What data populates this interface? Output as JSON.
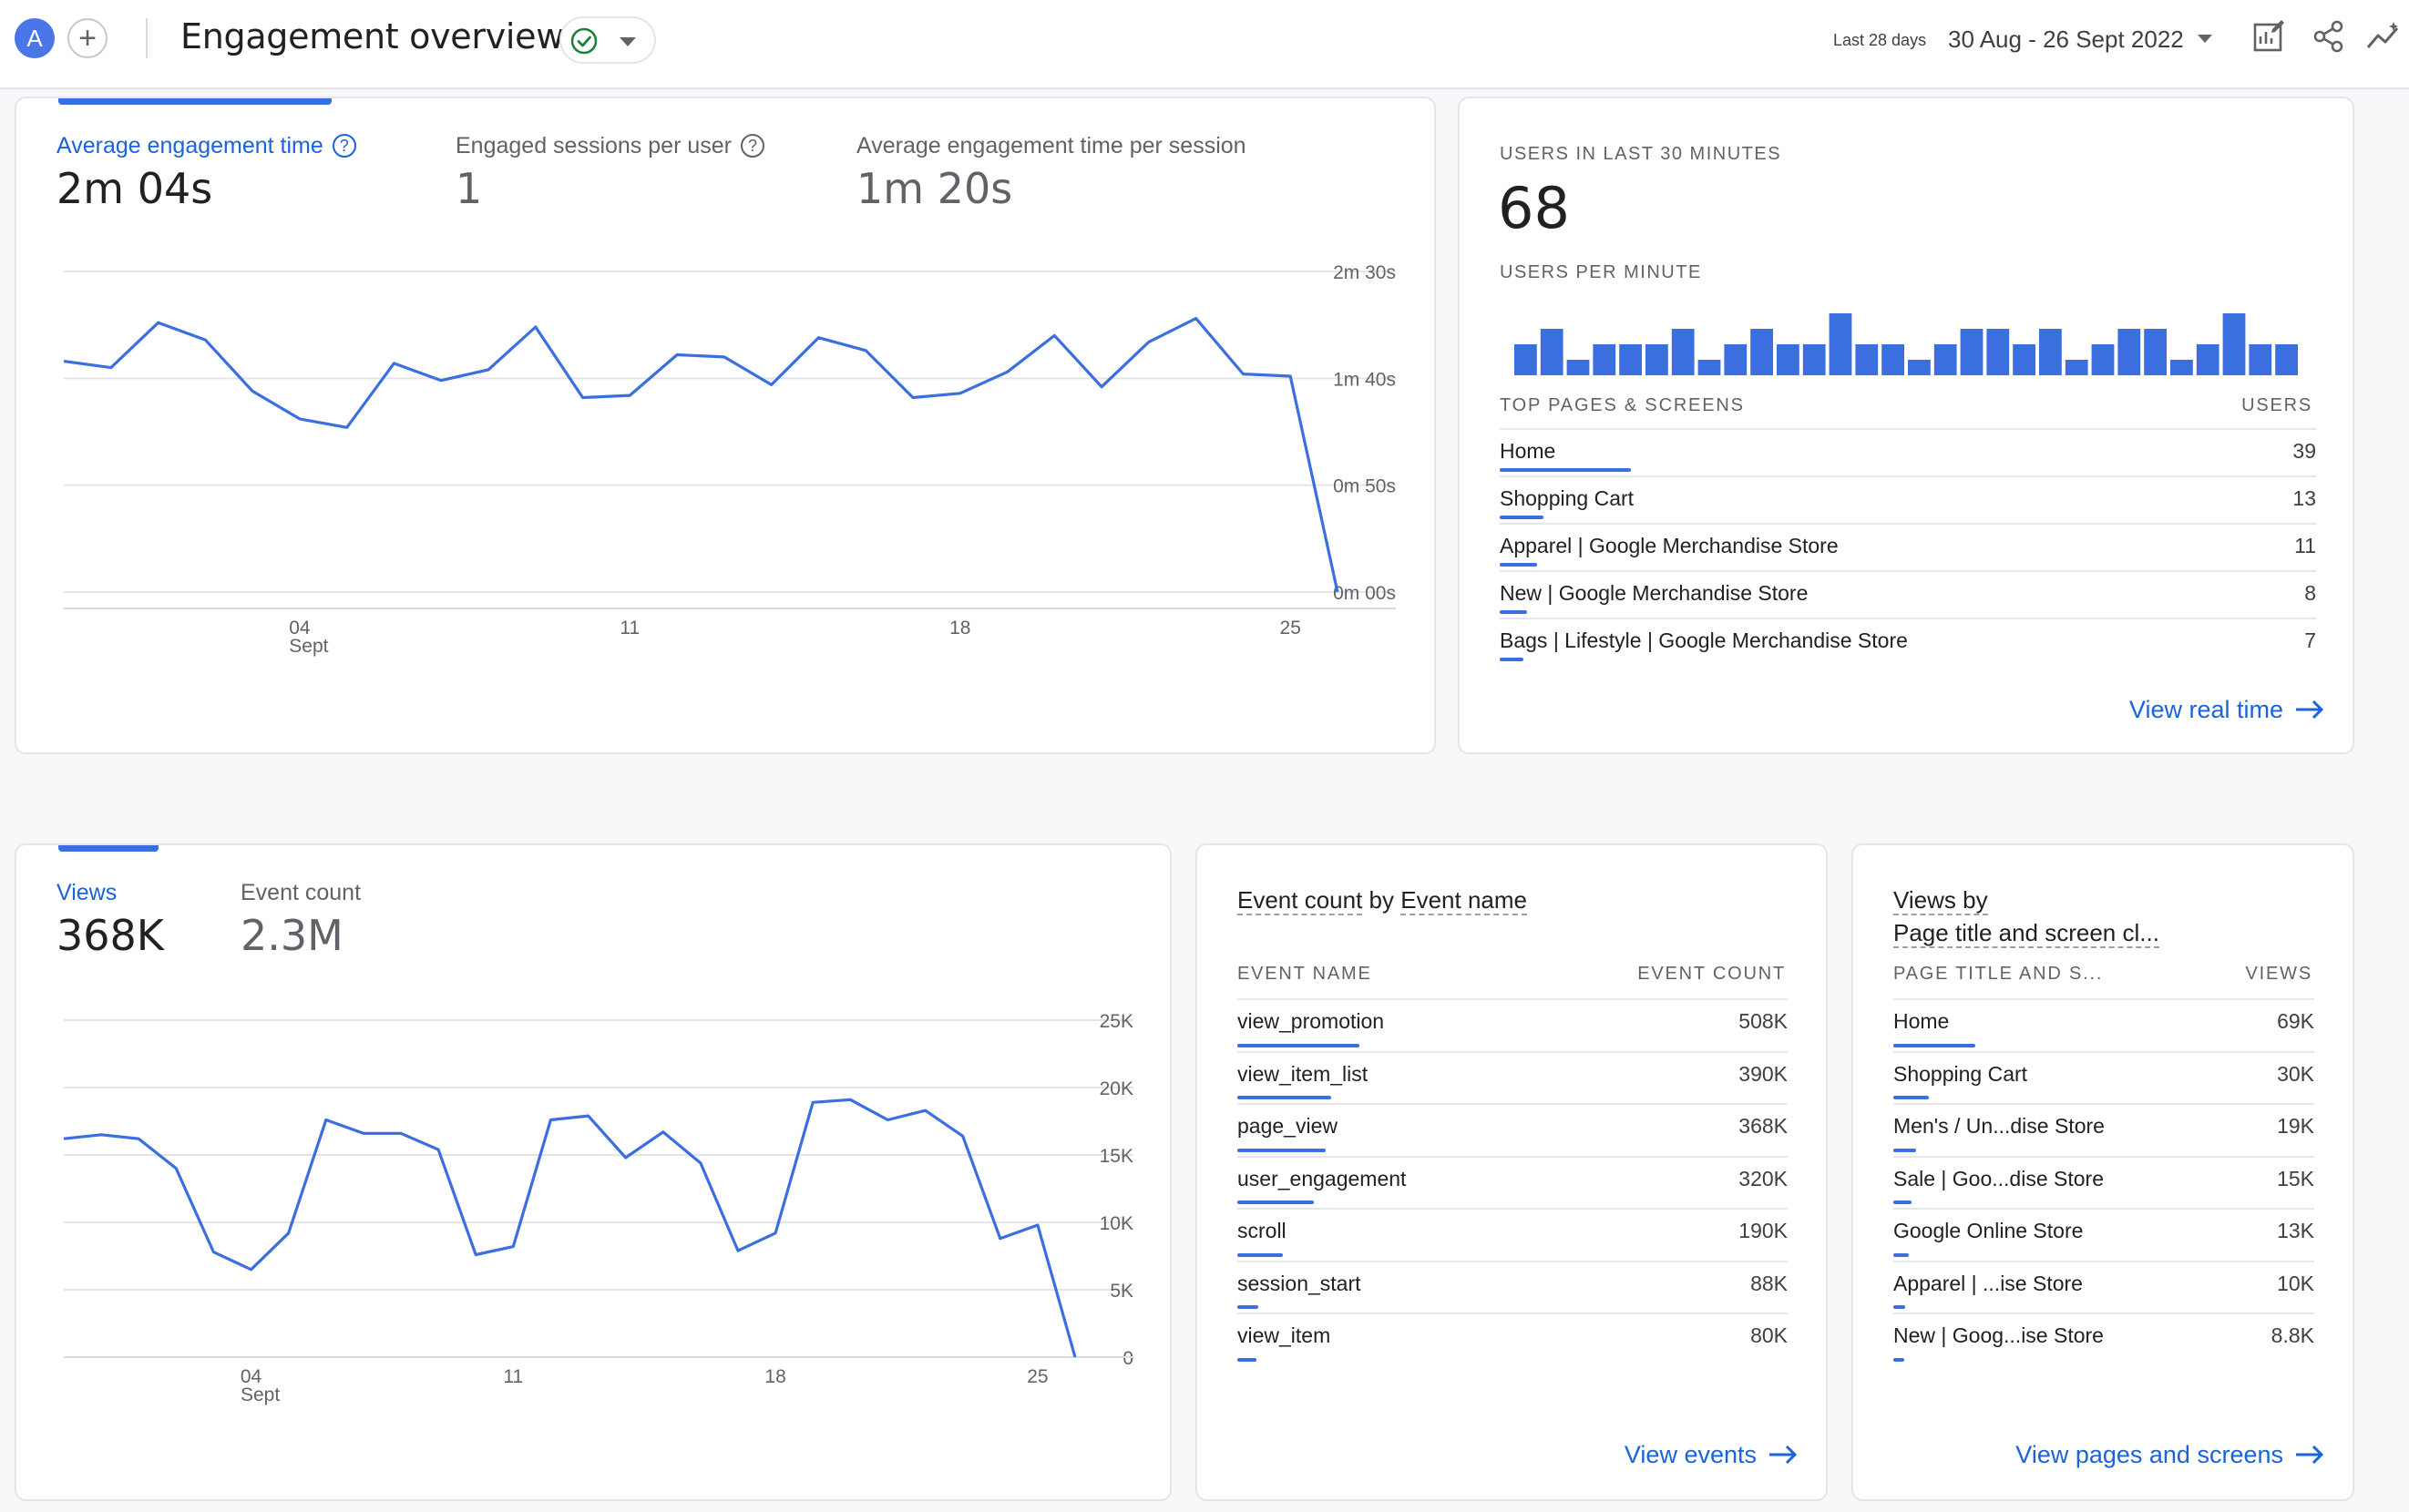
{
  "header": {
    "avatar_letter": "A",
    "add_symbol": "+",
    "title": "Engagement overview",
    "date_label": "Last 28 days",
    "date_range": "30 Aug - 26 Sept 2022",
    "icons": [
      "customize-report-icon",
      "share-icon",
      "insights-icon"
    ]
  },
  "engagement": {
    "metrics": [
      {
        "label": "Average engagement time",
        "value": "2m 04s"
      },
      {
        "label": "Engaged sessions per user",
        "value": "1"
      },
      {
        "label": "Average engagement time per session",
        "value": "1m 20s"
      }
    ],
    "chart_data": {
      "type": "line",
      "y_ticks": [
        "2m 30s",
        "1m 40s",
        "0m 50s",
        "0m 00s"
      ],
      "y_tick_seconds": [
        150,
        100,
        50,
        0
      ],
      "x_ticks": [
        {
          "label": "04",
          "sub": "Sept",
          "index": 5
        },
        {
          "label": "11",
          "sub": "",
          "index": 12
        },
        {
          "label": "18",
          "sub": "",
          "index": 19
        },
        {
          "label": "25",
          "sub": "",
          "index": 26
        }
      ],
      "ylim": [
        0,
        150
      ],
      "series": [
        {
          "values": [
            108,
            105,
            126,
            118,
            94,
            81,
            77,
            107,
            99,
            104,
            124,
            91,
            92,
            111,
            110,
            97,
            119,
            113,
            91,
            93,
            103,
            120,
            96,
            117,
            128,
            102,
            101,
            0
          ]
        }
      ]
    }
  },
  "realtime": {
    "users_caption": "USERS IN LAST 30 MINUTES",
    "users_value": "68",
    "per_minute_caption": "USERS PER MINUTE",
    "per_minute": [
      2,
      3,
      1,
      2,
      2,
      2,
      3,
      1,
      2,
      3,
      2,
      2,
      4,
      2,
      2,
      1,
      2,
      3,
      3,
      2,
      3,
      1,
      2,
      3,
      3,
      1,
      2,
      4,
      2,
      2
    ],
    "table_head_left": "TOP PAGES & SCREENS",
    "table_head_right": "USERS",
    "rows": [
      {
        "label": "Home",
        "value": "39",
        "share": 1.0
      },
      {
        "label": "Shopping Cart",
        "value": "13",
        "share": 0.333
      },
      {
        "label": "Apparel | Google Merchandise Store",
        "value": "11",
        "share": 0.282
      },
      {
        "label": "New | Google Merchandise Store",
        "value": "8",
        "share": 0.205
      },
      {
        "label": "Bags | Lifestyle | Google Merchandise Store",
        "value": "7",
        "share": 0.179
      }
    ],
    "link": "View real time"
  },
  "views": {
    "metrics": [
      {
        "label": "Views",
        "value": "368K"
      },
      {
        "label": "Event count",
        "value": "2.3M"
      }
    ],
    "chart_data": {
      "type": "line",
      "y_ticks": [
        "25K",
        "20K",
        "15K",
        "10K",
        "5K",
        "0"
      ],
      "y_tick_values": [
        25000,
        20000,
        15000,
        10000,
        5000,
        0
      ],
      "x_ticks": [
        {
          "label": "04",
          "sub": "Sept",
          "index": 5
        },
        {
          "label": "11",
          "sub": "",
          "index": 12
        },
        {
          "label": "18",
          "sub": "",
          "index": 19
        },
        {
          "label": "25",
          "sub": "",
          "index": 26
        }
      ],
      "ylim": [
        0,
        25000
      ],
      "series": [
        {
          "values": [
            16200,
            16500,
            16200,
            14000,
            7800,
            6500,
            9200,
            17600,
            16600,
            16600,
            15400,
            7600,
            8200,
            17600,
            17900,
            14800,
            16700,
            14400,
            7900,
            9200,
            18900,
            19100,
            17600,
            18300,
            16400,
            8800,
            9800,
            0
          ]
        }
      ]
    }
  },
  "events": {
    "title_part1": "Event count",
    "title_by": "by",
    "title_part2": "Event name",
    "head_left": "EVENT NAME",
    "head_right": "EVENT COUNT",
    "rows": [
      {
        "label": "view_promotion",
        "value": "508K",
        "share": 1.0
      },
      {
        "label": "view_item_list",
        "value": "390K",
        "share": 0.768
      },
      {
        "label": "page_view",
        "value": "368K",
        "share": 0.724
      },
      {
        "label": "user_engagement",
        "value": "320K",
        "share": 0.63
      },
      {
        "label": "scroll",
        "value": "190K",
        "share": 0.374
      },
      {
        "label": "session_start",
        "value": "88K",
        "share": 0.173
      },
      {
        "label": "view_item",
        "value": "80K",
        "share": 0.157
      }
    ],
    "link": "View events"
  },
  "pages": {
    "title_line1": "Views by",
    "title_line2": "Page title and screen cl...",
    "head_left": "PAGE TITLE AND S...",
    "head_right": "VIEWS",
    "rows": [
      {
        "label": "Home",
        "value": "69K",
        "share": 1.0
      },
      {
        "label": "Shopping Cart",
        "value": "30K",
        "share": 0.435
      },
      {
        "label": "Men's / Un...dise Store",
        "value": "19K",
        "share": 0.275
      },
      {
        "label": "Sale | Goo...dise Store",
        "value": "15K",
        "share": 0.217
      },
      {
        "label": "Google Online Store",
        "value": "13K",
        "share": 0.188
      },
      {
        "label": "Apparel | ...ise Store",
        "value": "10K",
        "share": 0.145
      },
      {
        "label": "New | Goog...ise Store",
        "value": "8.8K",
        "share": 0.128
      }
    ],
    "link": "View pages and screens"
  },
  "colors": {
    "accent": "#3b6fe0",
    "link": "#1a63d8",
    "status_ok": "#188038"
  }
}
